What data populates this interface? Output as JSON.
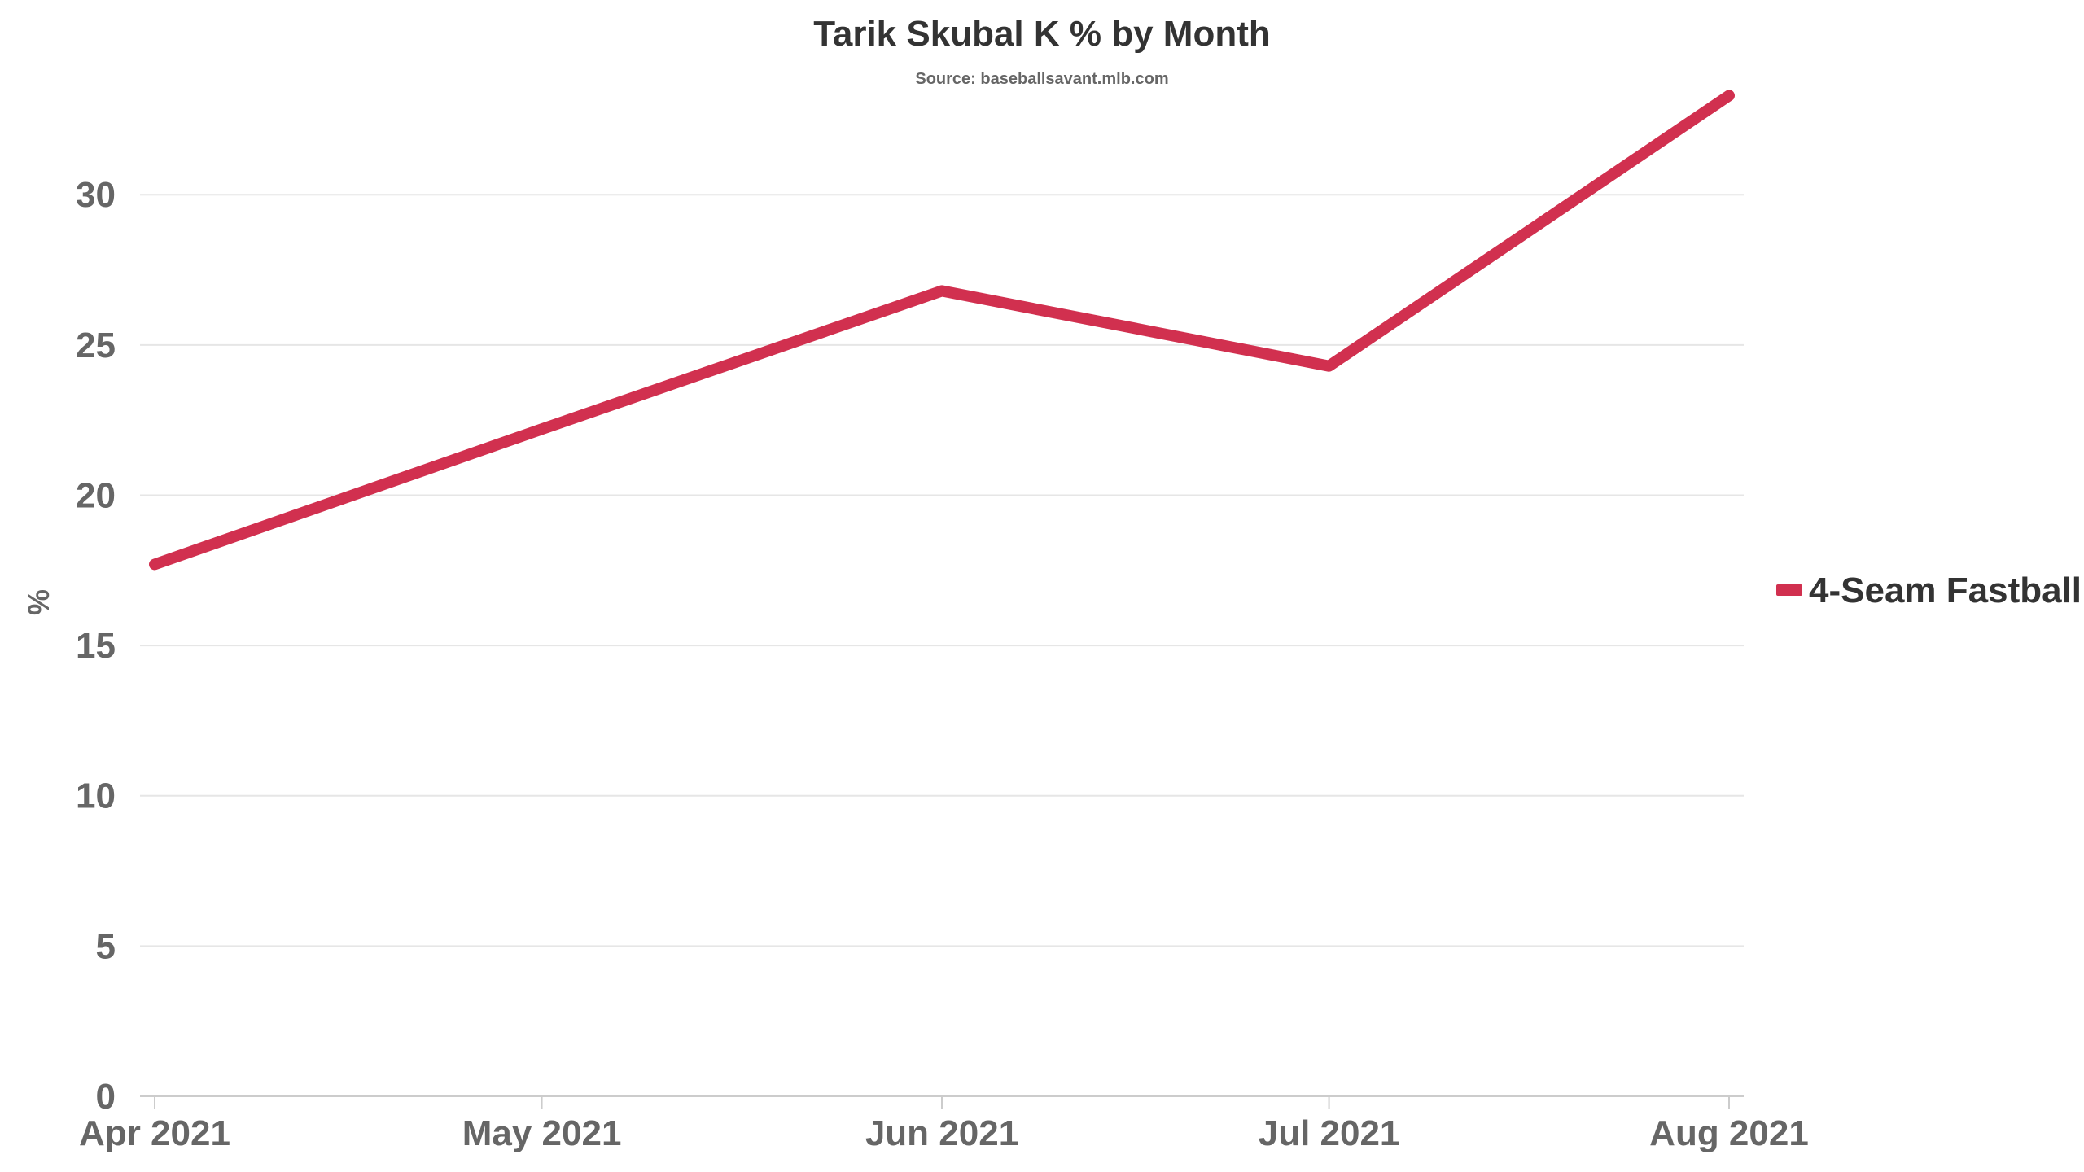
{
  "chart_data": {
    "type": "line",
    "title": "Tarik Skubal K % by Month",
    "subtitle": "Source: baseballsavant.mlb.com",
    "xlabel": "",
    "ylabel": "%",
    "categories": [
      "Apr 2021",
      "May 2021",
      "Jun 2021",
      "Jul 2021",
      "Aug 2021"
    ],
    "x_dates": [
      "2021-04-01",
      "2021-05-01",
      "2021-06-01",
      "2021-07-01",
      "2021-08-01"
    ],
    "yticks": [
      0,
      5,
      10,
      15,
      20,
      25,
      30
    ],
    "ylim": [
      0,
      33.5
    ],
    "grid": true,
    "legend_position": "right",
    "series": [
      {
        "name": "4-Seam Fastball",
        "color": "#d1304f",
        "values": [
          17.7,
          22.2,
          26.8,
          24.3,
          33.3
        ]
      }
    ]
  }
}
